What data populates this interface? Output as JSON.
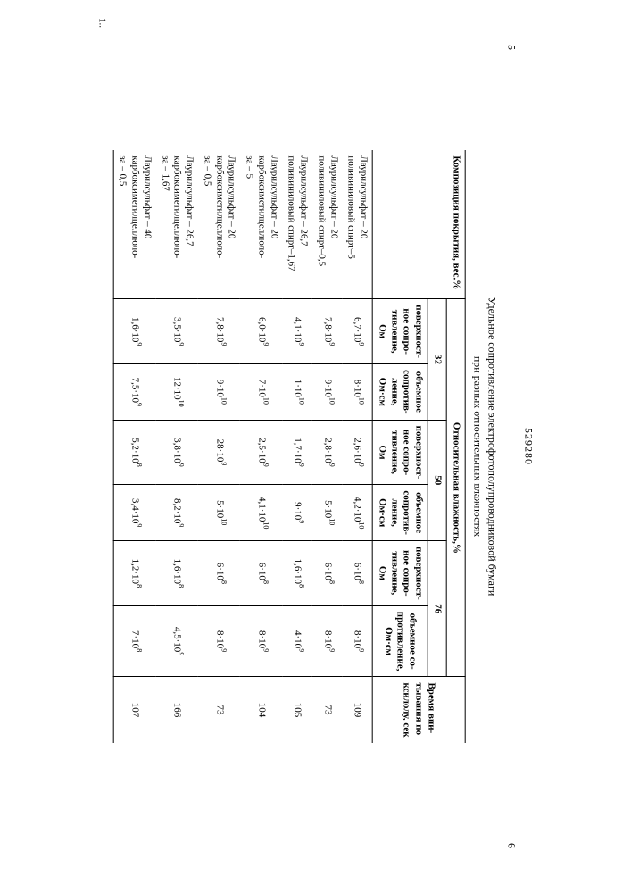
{
  "doc_number": "529280",
  "page_left": "5",
  "page_right": "6",
  "caption_line1": "Удельное сопротивление электрофотополупроводниковой бумаги",
  "caption_line2": "при разных относительных влажностях",
  "h_comp": "Композиция покрытия, вес.%",
  "h_humidity": "Относительная влажность,%",
  "h_time1": "Время впи-",
  "h_time2": "тывания по",
  "h_time3": "ксилолу, сек",
  "h_32": "32",
  "h_50": "50",
  "h_76": "76",
  "h_surface1": "поверхност-",
  "h_surface2": "ное сопро-",
  "h_surface3": "тивление,",
  "h_surface4": "Ом",
  "h_volume1": "объемное",
  "h_volume2": "сопротив-",
  "h_volume3": "ление,",
  "h_volume4": "Ом·см",
  "h_volA1": "объемное со-",
  "h_volA2": "противление,",
  "h_volA3": "Ом·см",
  "rows": [
    {
      "l1": "Лаурилсульфат – 20",
      "l2": "поливиниловый спирт–5",
      "s32": "6,7·10",
      "s32e": "9",
      "v32": "8·10",
      "v32e": "10",
      "s50": "2,6·10",
      "s50e": "9",
      "v50": "4,2·10",
      "v50e": "10",
      "s76": "6·10",
      "s76e": "8",
      "v76": "8·10",
      "v76e": "9",
      "t": "109"
    },
    {
      "l1": "Лаурилсульфат – 20",
      "l2": "поливиниловый спирт–0,5",
      "s32": "7,8·10",
      "s32e": "9",
      "v32": "9·10",
      "v32e": "10",
      "s50": "2,8·10",
      "s50e": "9",
      "v50": "5·10",
      "v50e": "10",
      "s76": "6·10",
      "s76e": "8",
      "v76": "8·10",
      "v76e": "9",
      "t": "73"
    },
    {
      "l1": "Лаурилсульфат – 26,7",
      "l2": "поливиниловый спирт–1,67",
      "s32": "4,1·10",
      "s32e": "9",
      "v32": "1·10",
      "v32e": "10",
      "s50": "1,7·10",
      "s50e": "9",
      "v50": "9·10",
      "v50e": "9",
      "s76": "1,6·10",
      "s76e": "8",
      "v76": "4·10",
      "v76e": "9",
      "t": "105"
    },
    {
      "l1": "Лаурилсульфат – 20",
      "l2": "карбоксиметилцеллюло-",
      "l3": "за – 5",
      "s32": "6,0·10",
      "s32e": "9",
      "v32": "7·10",
      "v32e": "10",
      "s50": "2,5·10",
      "s50e": "9",
      "v50": "4,1·10",
      "v50e": "10",
      "s76": "6·10",
      "s76e": "8",
      "v76": "8·10",
      "v76e": "9",
      "t": "104"
    },
    {
      "l1": "Лаурилсульфат – 20",
      "l2": "карбоксиметилцеллюло-",
      "l3": "за – 0,5",
      "s32": "7,8·10",
      "s32e": "9",
      "v32": "9·10",
      "v32e": "10",
      "s50": "28·10",
      "s50e": "9",
      "v50": "5·10",
      "v50e": "10",
      "s76": "6·10",
      "s76e": "8",
      "v76": "8·10",
      "v76e": "9",
      "t": "73"
    },
    {
      "l1": "Лаурилсульфат – 26,7",
      "l2": "карбоксиметилцеллюло-",
      "l3": "за – 1,67",
      "s32": "3,5·10",
      "s32e": "9",
      "v32": "12·10",
      "v32e": "10",
      "s50": "3,8·10",
      "s50e": "9",
      "v50": "8,2·10",
      "v50e": "9",
      "s76": "1,6·10",
      "s76e": "8",
      "v76": "4,5·10",
      "v76e": "9",
      "t": "166"
    },
    {
      "l1": "Лаурилсульфат – 40",
      "l2": "карбоксиметилцеллюло-",
      "l3": "за – 0,5",
      "s32": "1,6·10",
      "s32e": "9",
      "v32": "7,5·10",
      "v32e": "9",
      "s50": "5,2·10",
      "s50e": "8",
      "v50": "3,4·10",
      "v50e": "9",
      "s76": "1,2·10",
      "s76e": "8",
      "v76": "7·10",
      "v76e": "8",
      "t": "107"
    }
  ],
  "footer_tick": "1.."
}
